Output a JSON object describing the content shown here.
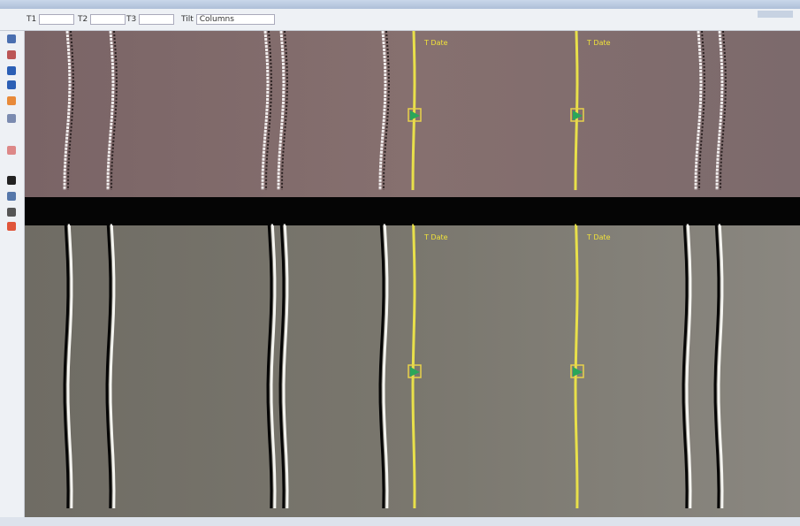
{
  "toolbar": {
    "fields": [
      "T1",
      "T2",
      "T3"
    ],
    "tilt": "Tilt",
    "mode": "Columns"
  },
  "markers": {
    "top": [
      "T Date",
      "T Date"
    ],
    "bottom": [
      "T Date",
      "T Date"
    ]
  }
}
